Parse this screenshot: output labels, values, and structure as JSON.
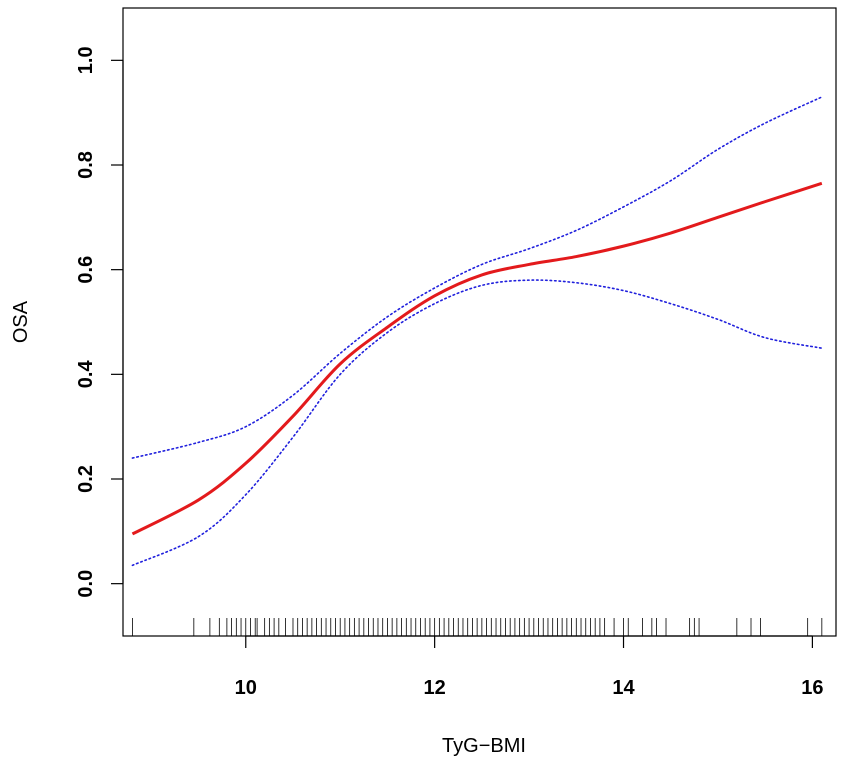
{
  "chart_data": {
    "type": "line",
    "title": "",
    "xlabel": "TyG−BMI",
    "ylabel": "OSA",
    "xlim": [
      8.7,
      16.25
    ],
    "ylim": [
      -0.1,
      1.1
    ],
    "x_ticks": [
      10,
      12,
      14,
      16
    ],
    "y_ticks": [
      0.0,
      0.2,
      0.4,
      0.6,
      0.8,
      1.0
    ],
    "x_tick_labels": [
      "10",
      "12",
      "14",
      "16"
    ],
    "y_tick_labels": [
      "0.0",
      "0.2",
      "0.4",
      "0.6",
      "0.8",
      "1.0"
    ],
    "grid": false,
    "legend": "none",
    "series": [
      {
        "role": "estimate",
        "style": "solid",
        "color": "#e31a1c",
        "x": [
          8.8,
          9.5,
          10.0,
          10.5,
          11.0,
          11.5,
          12.0,
          12.5,
          13.0,
          13.5,
          14.0,
          14.5,
          15.0,
          15.5,
          16.1
        ],
        "y": [
          0.095,
          0.16,
          0.23,
          0.32,
          0.42,
          0.49,
          0.55,
          0.59,
          0.61,
          0.625,
          0.645,
          0.67,
          0.7,
          0.73,
          0.765
        ]
      },
      {
        "role": "upper-ci",
        "style": "dotted",
        "color": "#2020dd",
        "x": [
          8.8,
          9.5,
          10.0,
          10.5,
          11.0,
          11.5,
          12.0,
          12.5,
          13.0,
          13.5,
          14.0,
          14.5,
          15.0,
          15.5,
          16.1
        ],
        "y": [
          0.24,
          0.27,
          0.3,
          0.36,
          0.44,
          0.51,
          0.565,
          0.61,
          0.64,
          0.675,
          0.72,
          0.77,
          0.83,
          0.88,
          0.93
        ]
      },
      {
        "role": "lower-ci",
        "style": "dotted",
        "color": "#2020dd",
        "x": [
          8.8,
          9.5,
          10.0,
          10.5,
          11.0,
          11.5,
          12.0,
          12.5,
          13.0,
          13.5,
          14.0,
          14.5,
          15.0,
          15.5,
          16.1
        ],
        "y": [
          0.035,
          0.09,
          0.17,
          0.28,
          0.4,
          0.48,
          0.535,
          0.57,
          0.58,
          0.575,
          0.56,
          0.535,
          0.505,
          0.47,
          0.45
        ]
      }
    ],
    "rug_x": [
      8.8,
      9.45,
      9.62,
      9.72,
      9.8,
      9.85,
      9.9,
      9.95,
      10.0,
      10.05,
      10.1,
      10.12,
      10.2,
      10.25,
      10.3,
      10.35,
      10.42,
      10.5,
      10.55,
      10.6,
      10.65,
      10.7,
      10.75,
      10.8,
      10.85,
      10.9,
      10.95,
      11.0,
      11.05,
      11.1,
      11.15,
      11.2,
      11.25,
      11.3,
      11.35,
      11.4,
      11.45,
      11.5,
      11.55,
      11.6,
      11.65,
      11.7,
      11.75,
      11.8,
      11.85,
      11.9,
      11.95,
      12.0,
      12.05,
      12.1,
      12.15,
      12.2,
      12.25,
      12.3,
      12.35,
      12.4,
      12.45,
      12.5,
      12.55,
      12.6,
      12.65,
      12.7,
      12.75,
      12.8,
      12.85,
      12.9,
      12.95,
      13.0,
      13.05,
      13.1,
      13.15,
      13.2,
      13.25,
      13.3,
      13.35,
      13.4,
      13.45,
      13.5,
      13.55,
      13.6,
      13.65,
      13.7,
      13.75,
      13.8,
      13.9,
      14.0,
      14.05,
      14.2,
      14.3,
      14.35,
      14.45,
      14.7,
      14.75,
      14.8,
      15.2,
      15.35,
      15.45,
      15.95,
      16.1
    ]
  }
}
